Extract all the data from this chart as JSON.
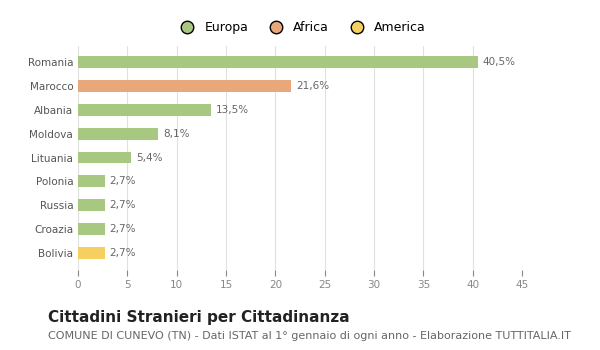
{
  "categories": [
    "Romania",
    "Marocco",
    "Albania",
    "Moldova",
    "Lituania",
    "Polonia",
    "Russia",
    "Croazia",
    "Bolivia"
  ],
  "values": [
    40.5,
    21.6,
    13.5,
    8.1,
    5.4,
    2.7,
    2.7,
    2.7,
    2.7
  ],
  "labels": [
    "40,5%",
    "21,6%",
    "13,5%",
    "8,1%",
    "5,4%",
    "2,7%",
    "2,7%",
    "2,7%",
    "2,7%"
  ],
  "colors": [
    "#a8c882",
    "#e8a87c",
    "#a8c882",
    "#a8c882",
    "#a8c882",
    "#a8c882",
    "#a8c882",
    "#a8c882",
    "#f5d060"
  ],
  "legend": [
    {
      "label": "Europa",
      "color": "#a8c882"
    },
    {
      "label": "Africa",
      "color": "#e8a87c"
    },
    {
      "label": "America",
      "color": "#f5d060"
    }
  ],
  "xlim": [
    0,
    45
  ],
  "xticks": [
    0,
    5,
    10,
    15,
    20,
    25,
    30,
    35,
    40,
    45
  ],
  "title": "Cittadini Stranieri per Cittadinanza",
  "subtitle": "COMUNE DI CUNEVO (TN) - Dati ISTAT al 1° gennaio di ogni anno - Elaborazione TUTTITALIA.IT",
  "background_color": "#ffffff",
  "grid_color": "#e0e0e0",
  "bar_height": 0.5,
  "title_fontsize": 11,
  "subtitle_fontsize": 8,
  "label_fontsize": 7.5,
  "tick_fontsize": 7.5,
  "legend_fontsize": 9
}
